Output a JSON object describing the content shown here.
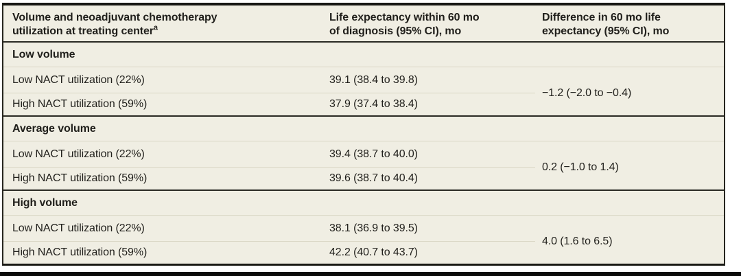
{
  "table": {
    "header": {
      "col1_line1": "Volume and neoadjuvant chemotherapy",
      "col1_line2": "utilization at treating center",
      "col1_footnote_mark": "a",
      "col2_line1": "Life expectancy within 60 mo",
      "col2_line2": "of diagnosis (95% CI), mo",
      "col3_line1": "Difference in 60 mo life",
      "col3_line2": "expectancy (95% CI), mo"
    },
    "sections": [
      {
        "label": "Low volume",
        "rows": [
          {
            "group": "Low NACT utilization (22%)",
            "life_expectancy": "39.1 (38.4 to 39.8)"
          },
          {
            "group": "High NACT utilization (59%)",
            "life_expectancy": "37.9 (37.4 to 38.4)"
          }
        ],
        "difference": "−1.2 (−2.0 to −0.4)"
      },
      {
        "label": "Average volume",
        "rows": [
          {
            "group": "Low NACT utilization (22%)",
            "life_expectancy": "39.4 (38.7 to 40.0)"
          },
          {
            "group": "High NACT utilization (59%)",
            "life_expectancy": "39.6 (38.7 to 40.4)"
          }
        ],
        "difference": "0.2 (−1.0 to 1.4)"
      },
      {
        "label": "High volume",
        "rows": [
          {
            "group": "Low NACT utilization (22%)",
            "life_expectancy": "38.1 (36.9 to 39.5)"
          },
          {
            "group": "High NACT utilization (59%)",
            "life_expectancy": "42.2 (40.7 to 43.7)"
          }
        ],
        "difference": "4.0 (1.6 to 6.5)"
      }
    ]
  },
  "colors": {
    "table_background": "#f0eee3",
    "rule_dark": "#2a2a24",
    "rule_light": "#d9d6c4",
    "frame_border": "#181814",
    "text": "#201f1b",
    "bottom_band": "#0b0b0a"
  }
}
